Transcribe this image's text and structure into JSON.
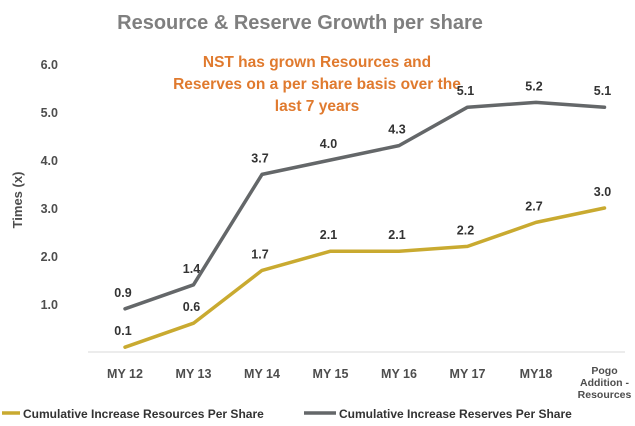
{
  "chart_data": {
    "type": "line",
    "title": "Resource & Reserve Growth per share",
    "annotation": [
      "NST has grown Resources and",
      "Reserves on a per share basis over the",
      "last 7 years"
    ],
    "ylabel": "Times (x)",
    "xlabel": "",
    "ylim": [
      0,
      6.0
    ],
    "yticks": [
      "1.0",
      "2.0",
      "3.0",
      "4.0",
      "5.0",
      "6.0"
    ],
    "grid": false,
    "legend_position": "bottom",
    "categories": [
      "MY 12",
      "MY 13",
      "MY 14",
      "MY 15",
      "MY 16",
      "MY 17",
      "MY18",
      [
        "Pogo",
        "Addition -",
        "Resources"
      ]
    ],
    "series": [
      {
        "name": "Cumulative Increase  Resources Per Share",
        "color": "#c9aa30",
        "values": [
          0.1,
          0.6,
          1.7,
          2.1,
          2.1,
          2.2,
          2.7,
          3.0
        ],
        "labels": [
          "0.1",
          "0.6",
          "1.7",
          "2.1",
          "2.1",
          "2.2",
          "2.7",
          "3.0"
        ]
      },
      {
        "name": "Cumulative Increase Reserves Per Share",
        "color": "#646769",
        "values": [
          0.9,
          1.4,
          3.7,
          4.0,
          4.3,
          5.1,
          5.2,
          5.1
        ],
        "labels": [
          "0.9",
          "1.4",
          "3.7",
          "4.0",
          "4.3",
          "5.1",
          "5.2",
          "5.1"
        ]
      }
    ]
  }
}
